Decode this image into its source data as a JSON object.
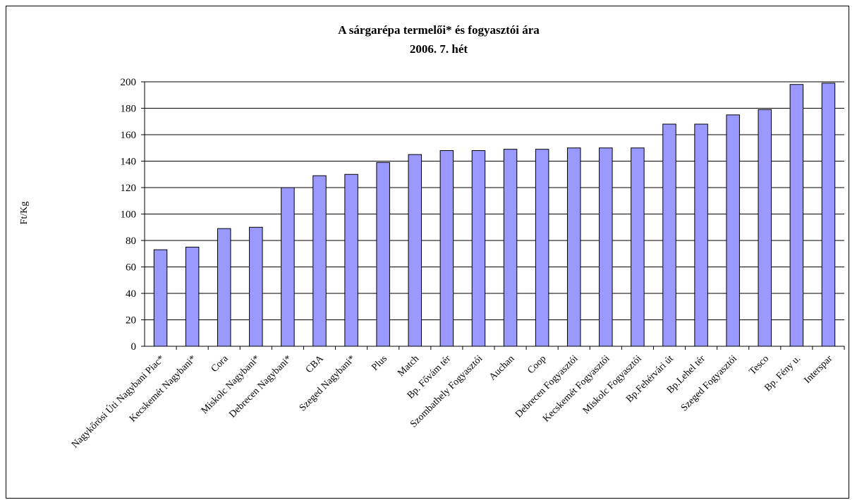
{
  "chart_data": {
    "type": "bar",
    "title": "A sárgarépa termelői* és fogyasztói ára",
    "subtitle": "2006. 7. hét",
    "ylabel": "Ft/Kg",
    "xlabel": "",
    "ylim": [
      0,
      200
    ],
    "yticks": [
      0,
      20,
      40,
      60,
      80,
      100,
      120,
      140,
      160,
      180,
      200
    ],
    "grid": true,
    "legend": "none",
    "bar_color": "#9999ff",
    "categories": [
      "Nagykőrösi Úti Nagybani Piac*",
      "Kecskemét  Nagybani*",
      "Cora",
      "Miskolc Nagybani*",
      "Debrecen Nagybani*",
      "CBA",
      "Szeged Nagybani*",
      "Plus",
      "Match",
      "Bp. Fővám tér",
      "Szombathely Fogyasztói",
      "Auchan",
      "Coop",
      "Debrecen Fogyasztói",
      "Kecskemét Fogyasztói",
      "Miskolc Fogyasztói",
      "Bp.Fehérvári út",
      "Bp.Lehel tér",
      "Szeged Fogyasztói",
      "Tesco",
      "Bp. Fény u.",
      "Interspar"
    ],
    "values": [
      73,
      75,
      89,
      90,
      120,
      129,
      130,
      139,
      145,
      148,
      148,
      149,
      149,
      150,
      150,
      150,
      168,
      168,
      175,
      179,
      198,
      199
    ]
  }
}
